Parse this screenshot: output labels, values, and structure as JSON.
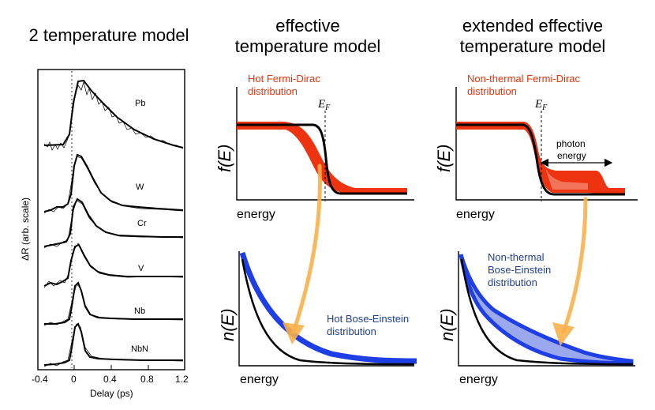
{
  "titles": {
    "left": "2 temperature model",
    "middle_line1": "effective",
    "middle_line2": "temperature model",
    "right_line1": "extended effective",
    "right_line2": "temperature model"
  },
  "left_plot": {
    "ylabel": "ΔR (arb. scale)",
    "xlabel": "Delay (ps)",
    "xticks": [
      "-0.4",
      "0",
      "0.4",
      "0.8",
      "1.2"
    ],
    "samples": [
      "Pb",
      "W",
      "Cr",
      "V",
      "Nb",
      "NbN"
    ]
  },
  "effective": {
    "fd_label_line1": "Hot Fermi-Dirac",
    "fd_label_line2": "distribution",
    "ef_label": "E",
    "ef_sub": "F",
    "f_ylabel": "f(E)",
    "f_xlabel": "energy",
    "be_label_line1": "Hot Bose-Einstein",
    "be_label_line2": "distribution",
    "n_ylabel": "n(E)",
    "n_xlabel": "energy"
  },
  "extended": {
    "fd_label_line1": "Non-thermal Fermi-Dirac",
    "fd_label_line2": "distribution",
    "ef_label": "E",
    "ef_sub": "F",
    "photon_line1": "photon",
    "photon_line2": "energy",
    "f_ylabel": "f(E)",
    "f_xlabel": "energy",
    "be_label_line1": "Non-thermal",
    "be_label_line2": "Bose-Einstein",
    "be_label_line3": "distribution",
    "n_ylabel": "n(E)",
    "n_xlabel": "energy"
  },
  "colors": {
    "red": "#ee3311",
    "blue": "#1e3ee6",
    "orange": "#f8b04a",
    "label_blue": "#1f3f96"
  }
}
